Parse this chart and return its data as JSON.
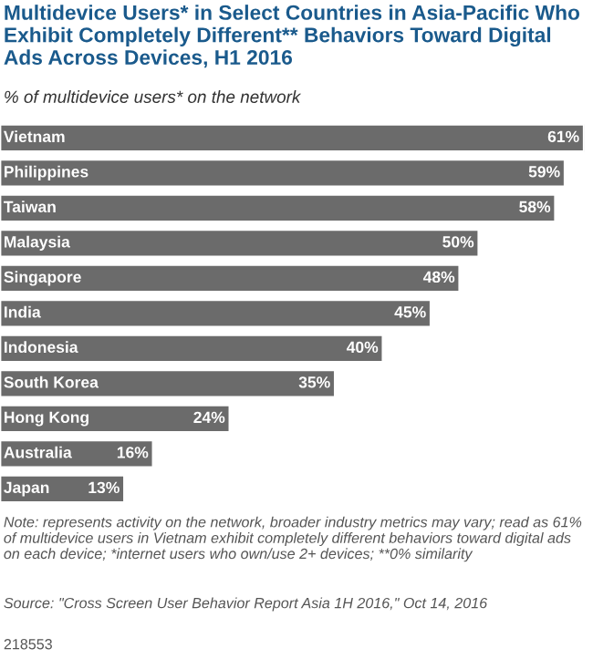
{
  "chart_data": {
    "type": "bar",
    "orientation": "horizontal",
    "title": "Multidevice Users* in Select Countries in Asia-Pacific Who Exhibit Completely Different** Behaviors Toward Digital Ads Across Devices, H1 2016",
    "subtitle": "% of multidevice users* on the network",
    "categories": [
      "Vietnam",
      "Philippines",
      "Taiwan",
      "Malaysia",
      "Singapore",
      "India",
      "Indonesia",
      "South Korea",
      "Hong Kong",
      "Australia",
      "Japan"
    ],
    "values": [
      61,
      59,
      58,
      50,
      48,
      45,
      40,
      35,
      24,
      16,
      13
    ],
    "value_labels": [
      "61%",
      "59%",
      "58%",
      "50%",
      "48%",
      "45%",
      "40%",
      "35%",
      "24%",
      "16%",
      "13%"
    ],
    "color": "#6b6b6b",
    "annotations": [
      "Note: represents activity on the network, broader industry metrics may vary; read as 61% of multidevice users in Vietnam exhibit completely different behaviors toward digital ads on each device; *internet users who own/use 2+ devices; **0% similarity",
      "Source: \"Cross Screen User Behavior Report Asia 1H 2016,\" Oct 14, 2016",
      "218553"
    ]
  }
}
